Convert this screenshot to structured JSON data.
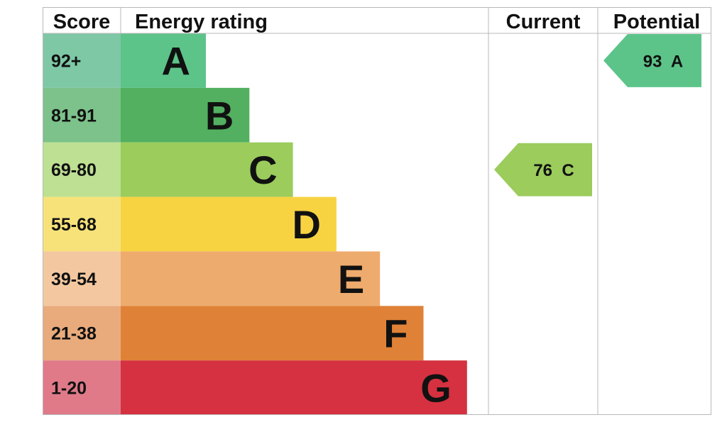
{
  "chart_data": {
    "type": "bar",
    "title": "",
    "headers": {
      "score": "Score",
      "rating": "Energy rating",
      "current": "Current",
      "potential": "Potential"
    },
    "bands": [
      {
        "letter": "A",
        "range": "92+",
        "color": "#5cc489",
        "score_bg": "#7ec8a6"
      },
      {
        "letter": "B",
        "range": "81-91",
        "color": "#52b060",
        "score_bg": "#7cc28a"
      },
      {
        "letter": "C",
        "range": "69-80",
        "color": "#9bcc5c",
        "score_bg": "#bde092"
      },
      {
        "letter": "D",
        "range": "55-68",
        "color": "#f7d342",
        "score_bg": "#f7e27a"
      },
      {
        "letter": "E",
        "range": "39-54",
        "color": "#eeab6e",
        "score_bg": "#f3c8a0"
      },
      {
        "letter": "F",
        "range": "21-38",
        "color": "#df8237",
        "score_bg": "#e9ab7c"
      },
      {
        "letter": "G",
        "range": "1-20",
        "color": "#d53140",
        "score_bg": "#e07a89"
      }
    ],
    "current": {
      "value": 76,
      "band": "C",
      "label": "76  C",
      "color": "#9bcc5c"
    },
    "potential": {
      "value": 93,
      "band": "A",
      "label": "93  A",
      "color": "#5cc489"
    },
    "colors": {
      "grid": "#b8b8b8",
      "text": "#111111"
    }
  }
}
